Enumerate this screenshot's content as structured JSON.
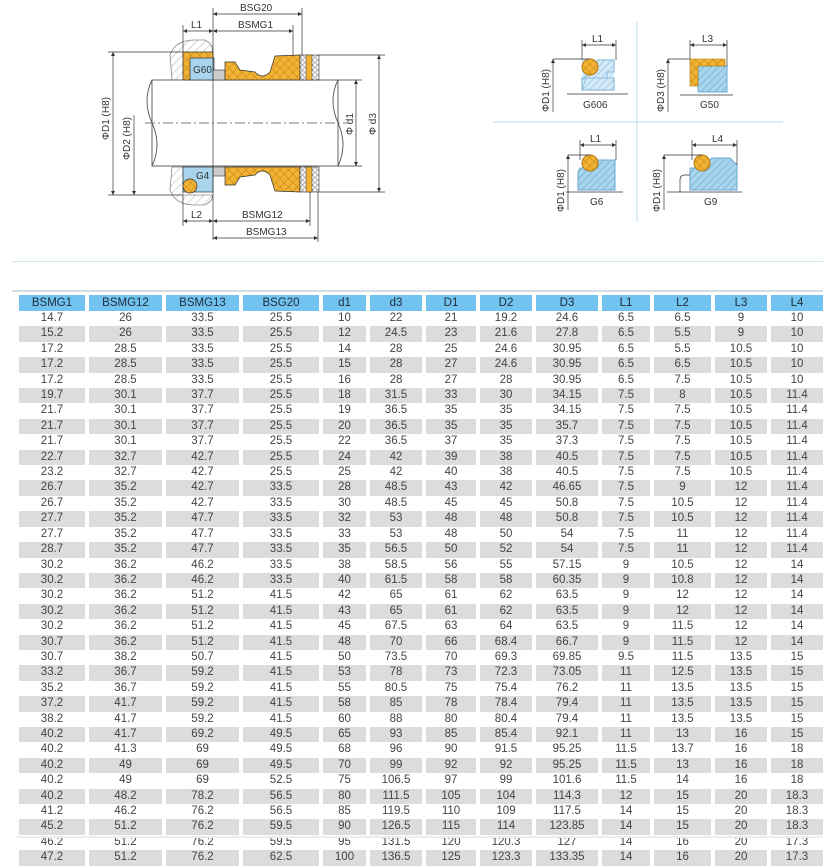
{
  "drawing": {
    "main": {
      "dims": {
        "bsg20": "BSG20",
        "bsmg1": "BSMG1",
        "l1": "L1",
        "l2": "L2",
        "bsmg12": "BSMG12",
        "bsmg13": "BSMG13",
        "d1_h8": "ΦD1 (H8)",
        "d2_h8": "ΦD2 (H8)",
        "dd1": "Φ d1",
        "dd3": "Φ d3"
      },
      "seat_upper": "G60",
      "seat_lower": "G4"
    },
    "variants": [
      {
        "name": "G606",
        "dim": "L1",
        "dia": "ΦD1 (H8)"
      },
      {
        "name": "G50",
        "dim": "L3",
        "dia": "ΦD3 (H8)"
      },
      {
        "name": "G6",
        "dim": "L1",
        "dia": "ΦD1 (H8)"
      },
      {
        "name": "G9",
        "dim": "L4",
        "dia": "ΦD1 (H8)"
      }
    ],
    "colors": {
      "elastomer": "#f2b233",
      "seat": "#a8d4ee",
      "accent": "#72c3ef"
    }
  },
  "table": {
    "headers": [
      "BSMG1",
      "BSMG12",
      "BSMG13",
      "BSG20",
      "d1",
      "d3",
      "D1",
      "D2",
      "D3",
      "L1",
      "L2",
      "L3",
      "L4"
    ],
    "rows": [
      [
        "14.7",
        "26",
        "33.5",
        "25.5",
        "10",
        "22",
        "21",
        "19.2",
        "24.6",
        "6.5",
        "6.5",
        "9",
        "10"
      ],
      [
        "15.2",
        "26",
        "33.5",
        "25.5",
        "12",
        "24.5",
        "23",
        "21.6",
        "27.8",
        "6.5",
        "5.5",
        "9",
        "10"
      ],
      [
        "17.2",
        "28.5",
        "33.5",
        "25.5",
        "14",
        "28",
        "25",
        "24.6",
        "30.95",
        "6.5",
        "5.5",
        "10.5",
        "10"
      ],
      [
        "17.2",
        "28.5",
        "33.5",
        "25.5",
        "15",
        "28",
        "27",
        "24.6",
        "30.95",
        "6.5",
        "6.5",
        "10.5",
        "10"
      ],
      [
        "17.2",
        "28.5",
        "33.5",
        "25.5",
        "16",
        "28",
        "27",
        "28",
        "30.95",
        "6.5",
        "7.5",
        "10.5",
        "10"
      ],
      [
        "19.7",
        "30.1",
        "37.7",
        "25.5",
        "18",
        "31.5",
        "33",
        "30",
        "34.15",
        "7.5",
        "8",
        "10.5",
        "11.4"
      ],
      [
        "21.7",
        "30.1",
        "37.7",
        "25.5",
        "19",
        "36.5",
        "35",
        "35",
        "34.15",
        "7.5",
        "7.5",
        "10.5",
        "11.4"
      ],
      [
        "21.7",
        "30.1",
        "37.7",
        "25.5",
        "20",
        "36.5",
        "35",
        "35",
        "35.7",
        "7.5",
        "7.5",
        "10.5",
        "11.4"
      ],
      [
        "21.7",
        "30.1",
        "37.7",
        "25.5",
        "22",
        "36.5",
        "37",
        "35",
        "37.3",
        "7.5",
        "7.5",
        "10.5",
        "11.4"
      ],
      [
        "22.7",
        "32.7",
        "42.7",
        "25.5",
        "24",
        "42",
        "39",
        "38",
        "40.5",
        "7.5",
        "7.5",
        "10.5",
        "11.4"
      ],
      [
        "23.2",
        "32.7",
        "42.7",
        "25.5",
        "25",
        "42",
        "40",
        "38",
        "40.5",
        "7.5",
        "7.5",
        "10.5",
        "11.4"
      ],
      [
        "26.7",
        "35.2",
        "42.7",
        "33.5",
        "28",
        "48.5",
        "43",
        "42",
        "46.65",
        "7.5",
        "9",
        "12",
        "11.4"
      ],
      [
        "26.7",
        "35.2",
        "42.7",
        "33.5",
        "30",
        "48.5",
        "45",
        "45",
        "50.8",
        "7.5",
        "10.5",
        "12",
        "11.4"
      ],
      [
        "27.7",
        "35.2",
        "47.7",
        "33.5",
        "32",
        "53",
        "48",
        "48",
        "50.8",
        "7.5",
        "10.5",
        "12",
        "11.4"
      ],
      [
        "27.7",
        "35.2",
        "47.7",
        "33.5",
        "33",
        "53",
        "48",
        "50",
        "54",
        "7.5",
        "11",
        "12",
        "11.4"
      ],
      [
        "28.7",
        "35.2",
        "47.7",
        "33.5",
        "35",
        "56.5",
        "50",
        "52",
        "54",
        "7.5",
        "11",
        "12",
        "11.4"
      ],
      [
        "30.2",
        "36.2",
        "46.2",
        "33.5",
        "38",
        "58.5",
        "56",
        "55",
        "57.15",
        "9",
        "10.5",
        "12",
        "14"
      ],
      [
        "30.2",
        "36.2",
        "46.2",
        "33.5",
        "40",
        "61.5",
        "58",
        "58",
        "60.35",
        "9",
        "10.8",
        "12",
        "14"
      ],
      [
        "30.2",
        "36.2",
        "51.2",
        "41.5",
        "42",
        "65",
        "61",
        "62",
        "63.5",
        "9",
        "12",
        "12",
        "14"
      ],
      [
        "30.2",
        "36.2",
        "51.2",
        "41.5",
        "43",
        "65",
        "61",
        "62",
        "63.5",
        "9",
        "12",
        "12",
        "14"
      ],
      [
        "30.2",
        "36.2",
        "51.2",
        "41.5",
        "45",
        "67.5",
        "63",
        "64",
        "63.5",
        "9",
        "11.5",
        "12",
        "14"
      ],
      [
        "30.7",
        "36.2",
        "51.2",
        "41.5",
        "48",
        "70",
        "66",
        "68.4",
        "66.7",
        "9",
        "11.5",
        "12",
        "14"
      ],
      [
        "30.7",
        "38.2",
        "50.7",
        "41.5",
        "50",
        "73.5",
        "70",
        "69.3",
        "69.85",
        "9.5",
        "11.5",
        "13.5",
        "15"
      ],
      [
        "33.2",
        "36.7",
        "59.2",
        "41.5",
        "53",
        "78",
        "73",
        "72.3",
        "73.05",
        "11",
        "12.5",
        "13.5",
        "15"
      ],
      [
        "35.2",
        "36.7",
        "59.2",
        "41.5",
        "55",
        "80.5",
        "75",
        "75.4",
        "76.2",
        "11",
        "13.5",
        "13.5",
        "15"
      ],
      [
        "37.2",
        "41.7",
        "59.2",
        "41.5",
        "58",
        "85",
        "78",
        "78.4",
        "79.4",
        "11",
        "13.5",
        "13.5",
        "15"
      ],
      [
        "38.2",
        "41.7",
        "59.2",
        "41.5",
        "60",
        "88",
        "80",
        "80.4",
        "79.4",
        "11",
        "13.5",
        "13.5",
        "15"
      ],
      [
        "40.2",
        "41.7",
        "69.2",
        "49.5",
        "65",
        "93",
        "85",
        "85.4",
        "92.1",
        "11",
        "13",
        "16",
        "15"
      ],
      [
        "40.2",
        "41.3",
        "69",
        "49.5",
        "68",
        "96",
        "90",
        "91.5",
        "95.25",
        "11.5",
        "13.7",
        "16",
        "18"
      ],
      [
        "40.2",
        "49",
        "69",
        "49.5",
        "70",
        "99",
        "92",
        "92",
        "95.25",
        "11.5",
        "13",
        "16",
        "18"
      ],
      [
        "40.2",
        "49",
        "69",
        "52.5",
        "75",
        "106.5",
        "97",
        "99",
        "101.6",
        "11.5",
        "14",
        "16",
        "18"
      ],
      [
        "40.2",
        "48.2",
        "78.2",
        "56.5",
        "80",
        "111.5",
        "105",
        "104",
        "114.3",
        "12",
        "15",
        "20",
        "18.3"
      ],
      [
        "41.2",
        "46.2",
        "76.2",
        "56.5",
        "85",
        "119.5",
        "110",
        "109",
        "117.5",
        "14",
        "15",
        "20",
        "18.3"
      ],
      [
        "45.2",
        "51.2",
        "76.2",
        "59.5",
        "90",
        "126.5",
        "115",
        "114",
        "123.85",
        "14",
        "15",
        "20",
        "18.3"
      ],
      [
        "46.2",
        "51.2",
        "76.2",
        "59.5",
        "95",
        "131.5",
        "120",
        "120.3",
        "127",
        "14",
        "16",
        "20",
        "17.3"
      ],
      [
        "47.2",
        "51.2",
        "76.2",
        "62.5",
        "100",
        "136.5",
        "125",
        "123.3",
        "133.35",
        "14",
        "16",
        "20",
        "17.3"
      ]
    ]
  }
}
